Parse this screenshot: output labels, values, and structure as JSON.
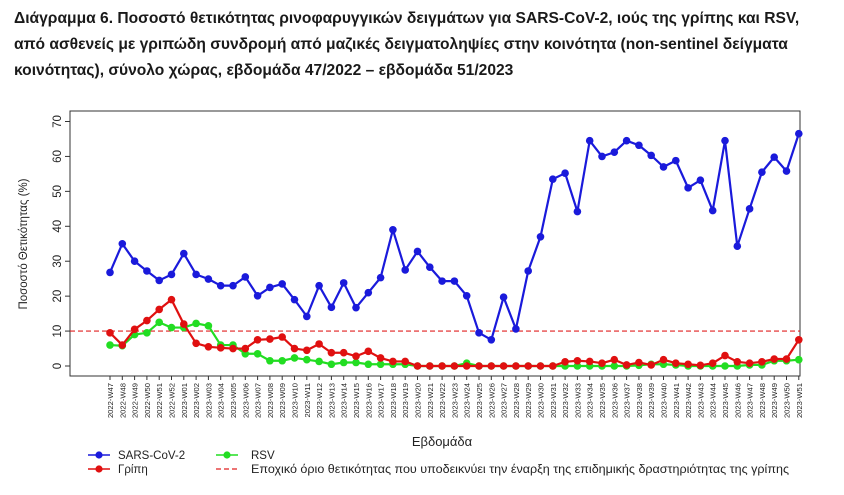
{
  "title": "Διάγραμμα 6. Ποσοστό θετικότητας ρινοφαρυγγικών δειγμάτων για SARS-CoV-2, ιούς της γρίπης και RSV, από ασθενείς με γριπώδη συνδρομή από μαζικές δειγματοληψίες στην κοινότητα (non-sentinel δείγματα κοινότητας), σύνολο χώρας, εβδομάδα 47/2022 – εβδομάδα 51/2023",
  "colors": {
    "sars": "#1a1adb",
    "flu": "#e01010",
    "rsv": "#22dd22",
    "threshold": "#e02020"
  },
  "chart_data": {
    "type": "line",
    "xlabel": "Εβδομάδα",
    "ylabel": "Ποσοστό Θετικότητας (%)",
    "ylim": [
      0,
      70
    ],
    "yticks": [
      0,
      10,
      20,
      30,
      40,
      50,
      60,
      70
    ],
    "grid": false,
    "legend_position": "bottom",
    "categories": [
      "2022-W47",
      "2022-W48",
      "2022-W49",
      "2022-W50",
      "2022-W51",
      "2022-W52",
      "2023-W01",
      "2023-W02",
      "2023-W03",
      "2023-W04",
      "2023-W05",
      "2023-W06",
      "2023-W07",
      "2023-W08",
      "2023-W09",
      "2023-W10",
      "2023-W11",
      "2023-W12",
      "2023-W13",
      "2023-W14",
      "2023-W15",
      "2023-W16",
      "2023-W17",
      "2023-W18",
      "2023-W19",
      "2023-W20",
      "2023-W21",
      "2023-W22",
      "2023-W23",
      "2023-W24",
      "2023-W25",
      "2023-W26",
      "2023-W27",
      "2023-W28",
      "2023-W29",
      "2023-W30",
      "2023-W31",
      "2023-W32",
      "2023-W33",
      "2023-W34",
      "2023-W35",
      "2023-W36",
      "2023-W37",
      "2023-W38",
      "2023-W39",
      "2023-W40",
      "2023-W41",
      "2023-W42",
      "2023-W43",
      "2023-W44",
      "2023-W45",
      "2023-W46",
      "2023-W47",
      "2023-W48",
      "2023-W49",
      "2023-W50",
      "2023-W51"
    ],
    "series": [
      {
        "name": "SARS-CoV-2",
        "key": "sars",
        "values": [
          26.8,
          35,
          30,
          27.2,
          24.5,
          26.2,
          32.2,
          26.2,
          24.9,
          23,
          23,
          25.5,
          20.1,
          22.5,
          23.5,
          19,
          14.2,
          23,
          16.8,
          23.8,
          16.7,
          21,
          25.3,
          39,
          27.5,
          32.8,
          28.3,
          24.3,
          24.3,
          20.1,
          9.5,
          7.5,
          19.7,
          10.6,
          27.2,
          37,
          53.5,
          55.2,
          44.2,
          64.5,
          60,
          61.2,
          64.5,
          63.2,
          60.3,
          57,
          58.8,
          51,
          53.2,
          44.5,
          64.5,
          34.3,
          45,
          55.5,
          59.8,
          55.8,
          66.5
        ]
      },
      {
        "name": "Γρίπη",
        "key": "flu",
        "values": [
          9.5,
          6,
          10.5,
          13,
          16.2,
          19,
          12,
          6.5,
          5.5,
          5.2,
          5,
          5,
          7.5,
          7.7,
          8.3,
          5,
          4.5,
          6.3,
          3.8,
          3.8,
          2.8,
          4.2,
          2.3,
          1.3,
          1.3,
          0,
          0,
          0,
          0,
          0,
          0,
          0,
          0,
          0,
          0,
          0,
          0,
          1.2,
          1.5,
          1.3,
          0.8,
          1.8,
          0.3,
          1,
          0.3,
          1.8,
          0.8,
          0.5,
          0.2,
          0.8,
          3,
          1.2,
          0.8,
          1.2,
          2,
          2,
          7.5
        ]
      },
      {
        "name": "RSV",
        "key": "rsv",
        "values": [
          6,
          5.8,
          9,
          9.5,
          12.5,
          11,
          11,
          12.2,
          11.5,
          6,
          6,
          3.5,
          3.5,
          1.5,
          1.5,
          2.3,
          1.8,
          1.3,
          0.5,
          1,
          1,
          0.5,
          0.5,
          0.5,
          0.5,
          0,
          0,
          0,
          0,
          0.8,
          0,
          0,
          0,
          0,
          0,
          0,
          0,
          0,
          0,
          0,
          0,
          0,
          0,
          0.2,
          0.5,
          0.5,
          0.3,
          0,
          0,
          0,
          0,
          0,
          0.3,
          0.3,
          1.5,
          1.5,
          1.8
        ]
      }
    ],
    "threshold": {
      "value": 10,
      "label": "Εποχικό όριο θετικότητας που υποδεικνύει την έναρξη της επιδημικής δραστηριότητας της γρίπης"
    }
  }
}
